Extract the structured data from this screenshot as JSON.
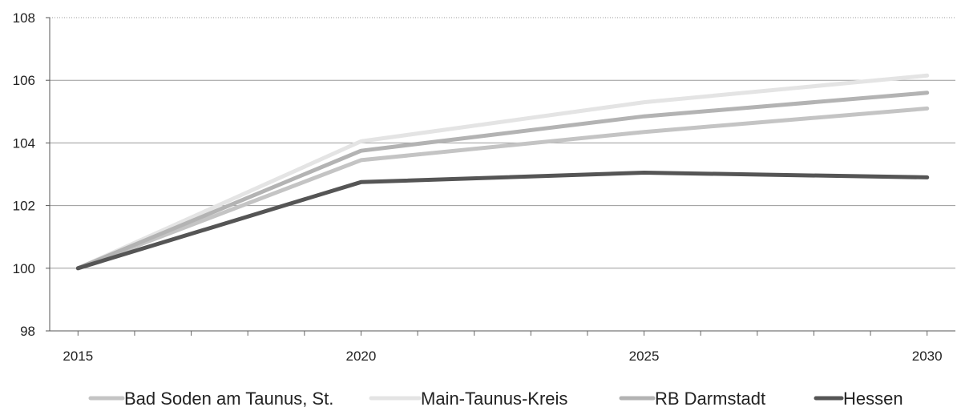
{
  "chart_data": {
    "type": "line",
    "title": "",
    "xlabel": "",
    "ylabel": "",
    "x": [
      2015,
      2020,
      2025,
      2030
    ],
    "xticks": [
      "2015",
      "2020",
      "2025",
      "2030"
    ],
    "yticks": [
      "98",
      "100",
      "102",
      "104",
      "106",
      "108"
    ],
    "xlim": [
      2014.5,
      2030.5
    ],
    "ylim": [
      98,
      108
    ],
    "grid": "horizontal",
    "legend_position": "bottom",
    "series": [
      {
        "name": "Bad Soden am Taunus, St.",
        "color": "#c4c4c4",
        "values": [
          100,
          103.45,
          104.35,
          105.1
        ]
      },
      {
        "name": "Main-Taunus-Kreis",
        "color": "#e4e4e4",
        "values": [
          100,
          104.05,
          105.3,
          106.15
        ]
      },
      {
        "name": "RB Darmstadt",
        "color": "#b3b3b3",
        "values": [
          100,
          103.75,
          104.85,
          105.6
        ]
      },
      {
        "name": "Hessen",
        "color": "#555555",
        "values": [
          100,
          102.75,
          103.05,
          102.9
        ]
      }
    ]
  }
}
